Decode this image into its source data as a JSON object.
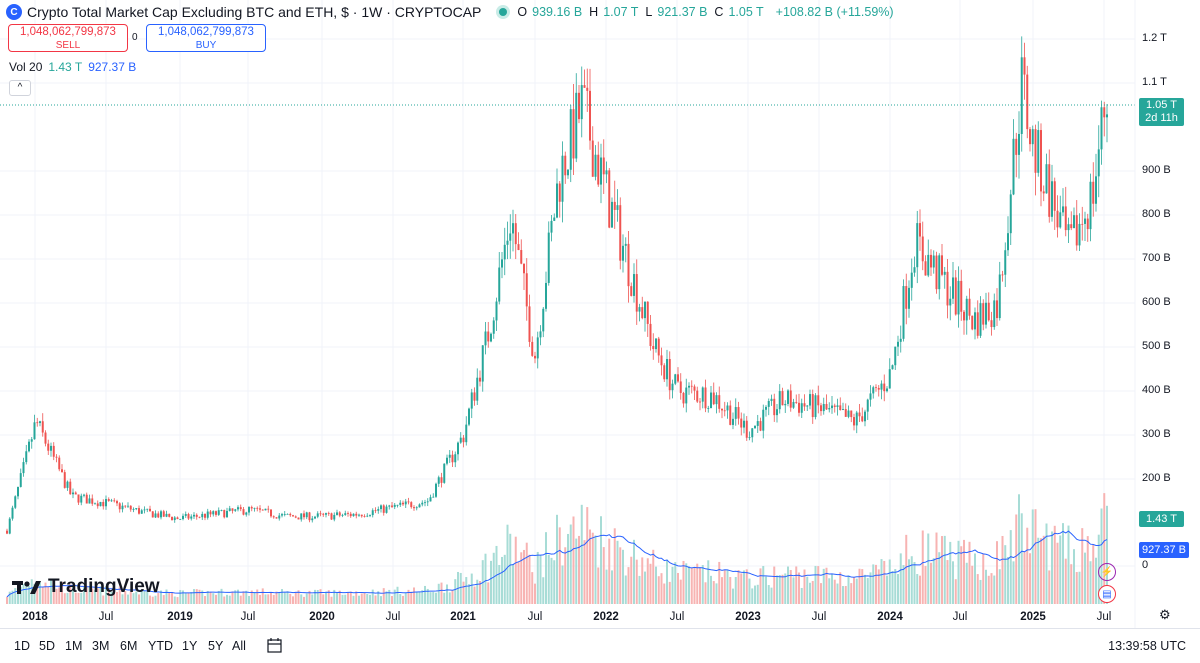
{
  "header": {
    "logo_glyph": "C",
    "title": "Crypto Total Market Cap Excluding BTC and ETH, $ · 1W · CRYPTOCAP",
    "ohlc": [
      {
        "k": "O",
        "v": "939.16 B"
      },
      {
        "k": "H",
        "v": "1.07 T"
      },
      {
        "k": "L",
        "v": "921.37 B"
      },
      {
        "k": "C",
        "v": "1.05 T"
      },
      {
        "k": "",
        "v": "+108.82 B (+11.59%)"
      }
    ]
  },
  "trade": {
    "sell_value": "1,048,062,799,873",
    "sell_label": "SELL",
    "spread": "0",
    "buy_value": "1,048,062,799,873",
    "buy_label": "BUY"
  },
  "volume_legend": {
    "name": "Vol 20",
    "value": "1.43 T",
    "ma": "927.37 B"
  },
  "collapse_glyph": "^",
  "price_tag": {
    "price": "1.05 T",
    "countdown": "2d 11h"
  },
  "volume_tag": "1.43 T",
  "ma_tag": "927.37 B",
  "y_axis": [
    "1.2 T",
    "1.1 T",
    "900 B",
    "800 B",
    "700 B",
    "600 B",
    "500 B",
    "400 B",
    "300 B",
    "200 B",
    "0"
  ],
  "x_axis": [
    "2018",
    "Jul",
    "2019",
    "Jul",
    "2020",
    "Jul",
    "2021",
    "Jul",
    "2022",
    "Jul",
    "2023",
    "Jul",
    "2024",
    "Jul",
    "2025",
    "Jul"
  ],
  "watermark": "TradingView",
  "ranges": [
    "1D",
    "5D",
    "1M",
    "3M",
    "6M",
    "YTD",
    "1Y",
    "5Y",
    "All"
  ],
  "clock": "13:39:58 UTC",
  "colors": {
    "up": "#26a69a",
    "down": "#ef5350",
    "ma": "#2962ff"
  },
  "chart_data": {
    "type": "candlestick",
    "title": "Crypto Total Market Cap Excluding BTC and ETH",
    "ylabel": "",
    "xlabel": "",
    "y_unit": "USD",
    "ylim": [
      0,
      1200000000000
    ],
    "x": [
      "2018-01",
      "2018-04",
      "2018-07",
      "2018-10",
      "2019-01",
      "2019-04",
      "2019-07",
      "2019-10",
      "2020-01",
      "2020-04",
      "2020-07",
      "2020-10",
      "2021-01",
      "2021-03",
      "2021-05",
      "2021-07",
      "2021-09",
      "2021-11",
      "2022-01",
      "2022-03",
      "2022-05",
      "2022-07",
      "2022-10",
      "2023-01",
      "2023-04",
      "2023-07",
      "2023-10",
      "2024-01",
      "2024-03",
      "2024-05",
      "2024-08",
      "2024-10",
      "2024-12",
      "2025-01",
      "2025-02",
      "2025-04",
      "2025-06",
      "2025-07"
    ],
    "series": [
      {
        "name": "Price",
        "values": [
          330000000000,
          160000000000,
          145000000000,
          125000000000,
          110000000000,
          120000000000,
          130000000000,
          115000000000,
          115000000000,
          120000000000,
          135000000000,
          150000000000,
          300000000000,
          520000000000,
          800000000000,
          480000000000,
          880000000000,
          1050000000000,
          850000000000,
          680000000000,
          500000000000,
          400000000000,
          390000000000,
          310000000000,
          380000000000,
          360000000000,
          330000000000,
          440000000000,
          740000000000,
          660000000000,
          560000000000,
          600000000000,
          1100000000000,
          950000000000,
          880000000000,
          720000000000,
          850000000000,
          1050000000000
        ]
      }
    ],
    "volume": {
      "name": "Vol 20",
      "last": "1.43 T",
      "ma_last": "927.37 B"
    }
  }
}
